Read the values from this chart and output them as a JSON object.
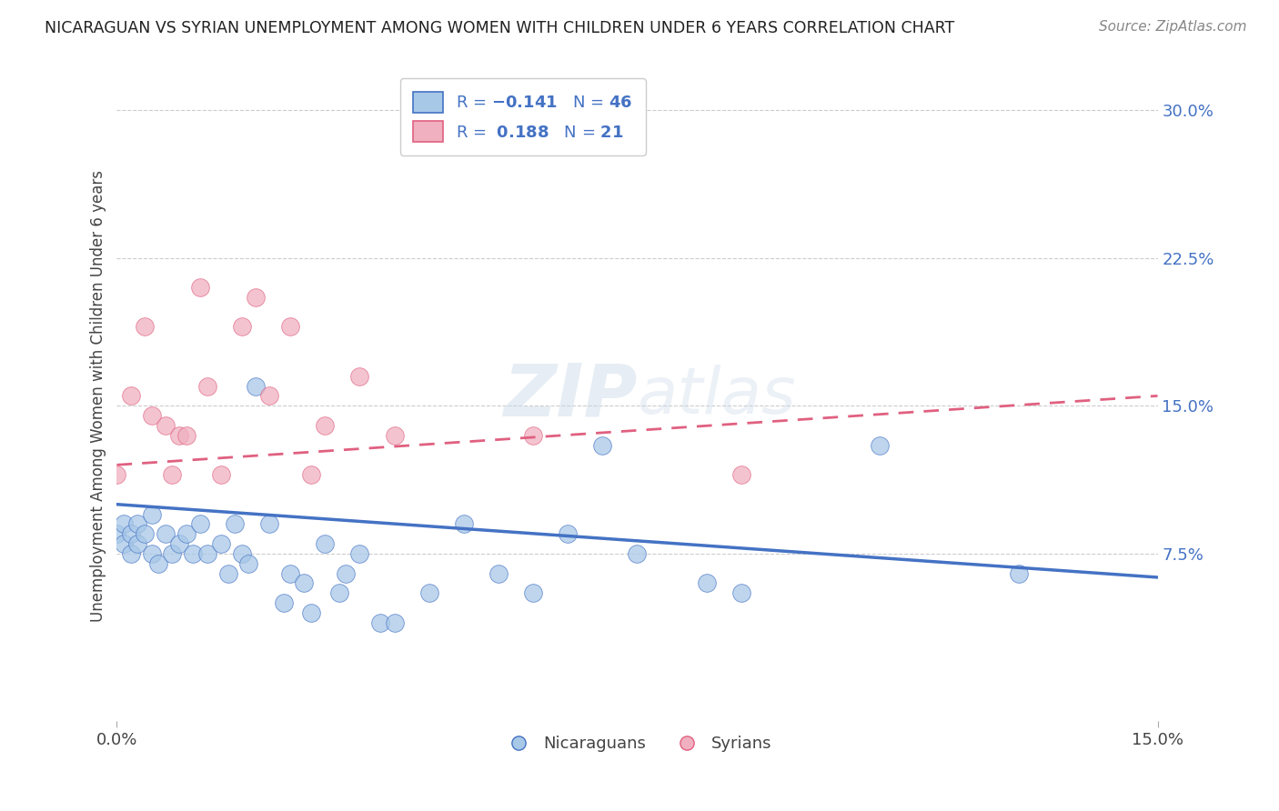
{
  "title": "NICARAGUAN VS SYRIAN UNEMPLOYMENT AMONG WOMEN WITH CHILDREN UNDER 6 YEARS CORRELATION CHART",
  "source": "Source: ZipAtlas.com",
  "ylabel": "Unemployment Among Women with Children Under 6 years",
  "yticks": [
    "7.5%",
    "15.0%",
    "22.5%",
    "30.0%"
  ],
  "ytick_vals": [
    0.075,
    0.15,
    0.225,
    0.3
  ],
  "xlim": [
    0.0,
    0.15
  ],
  "ylim": [
    -0.01,
    0.32
  ],
  "legend_n_blue": "46",
  "legend_r_pink": "0.188",
  "legend_n_pink": "21",
  "blue_color": "#a8c8e8",
  "pink_color": "#f0b0c0",
  "trend_blue": "#4472c4",
  "trend_pink": "#e06080",
  "watermark_color": "#c8d8e8",
  "nicaraguan_x": [
    0.0,
    0.001,
    0.001,
    0.002,
    0.002,
    0.003,
    0.003,
    0.004,
    0.005,
    0.005,
    0.006,
    0.007,
    0.008,
    0.009,
    0.01,
    0.011,
    0.012,
    0.013,
    0.015,
    0.016,
    0.017,
    0.018,
    0.019,
    0.02,
    0.022,
    0.024,
    0.025,
    0.027,
    0.028,
    0.03,
    0.032,
    0.033,
    0.035,
    0.038,
    0.04,
    0.045,
    0.05,
    0.055,
    0.06,
    0.065,
    0.07,
    0.075,
    0.085,
    0.09,
    0.11,
    0.13
  ],
  "nicaraguan_y": [
    0.085,
    0.08,
    0.09,
    0.075,
    0.085,
    0.08,
    0.09,
    0.085,
    0.095,
    0.075,
    0.07,
    0.085,
    0.075,
    0.08,
    0.085,
    0.075,
    0.09,
    0.075,
    0.08,
    0.065,
    0.09,
    0.075,
    0.07,
    0.16,
    0.09,
    0.05,
    0.065,
    0.06,
    0.045,
    0.08,
    0.055,
    0.065,
    0.075,
    0.04,
    0.04,
    0.055,
    0.09,
    0.065,
    0.055,
    0.085,
    0.13,
    0.075,
    0.06,
    0.055,
    0.13,
    0.065
  ],
  "syrian_x": [
    0.0,
    0.002,
    0.004,
    0.005,
    0.007,
    0.008,
    0.009,
    0.01,
    0.012,
    0.013,
    0.015,
    0.018,
    0.02,
    0.022,
    0.025,
    0.028,
    0.03,
    0.035,
    0.04,
    0.06,
    0.09
  ],
  "syrian_y": [
    0.115,
    0.155,
    0.19,
    0.145,
    0.14,
    0.115,
    0.135,
    0.135,
    0.21,
    0.16,
    0.115,
    0.19,
    0.205,
    0.155,
    0.19,
    0.115,
    0.14,
    0.165,
    0.135,
    0.135,
    0.115
  ],
  "blue_trend_x0": 0.0,
  "blue_trend_y0": 0.1,
  "blue_trend_x1": 0.15,
  "blue_trend_y1": 0.063,
  "pink_trend_x0": 0.0,
  "pink_trend_y0": 0.12,
  "pink_trend_x1": 0.15,
  "pink_trend_y1": 0.155
}
